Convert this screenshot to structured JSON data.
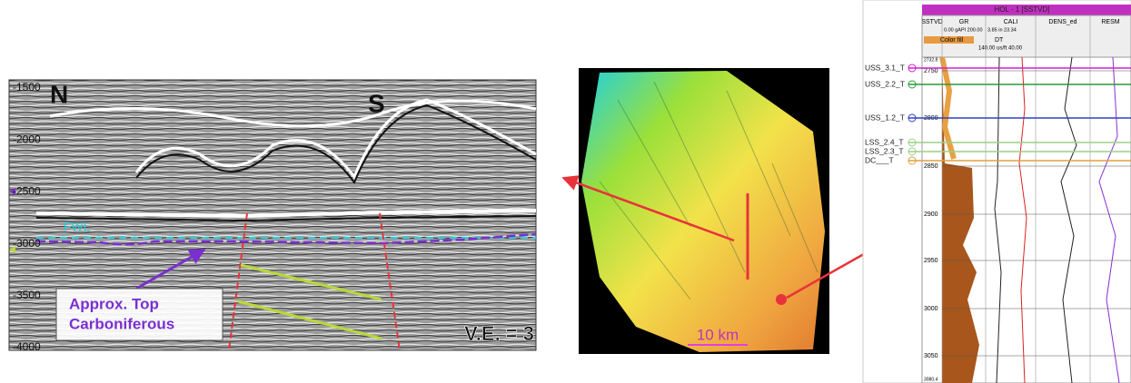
{
  "seismic": {
    "compass_left": "N",
    "compass_right": "S",
    "fluid_label": "FWL",
    "depth_labels": [
      -1500,
      -2000,
      -2500,
      -3000,
      -3500,
      -4000
    ],
    "annotation": [
      "Approx. Top",
      "Carboniferous"
    ],
    "exaggeration": "V.E. = 3"
  },
  "map": {
    "scale_bar": "10 km"
  },
  "well_log": {
    "title": "HOL - 1 [SSTVD]",
    "columns": [
      "SSTVD",
      "GR",
      "CALI",
      "DENS_ed",
      "RESM"
    ],
    "scales": [
      "0.00 gAPI 200.00",
      "3.85 in 23.34"
    ],
    "fill_label": "Color fill",
    "dt_label": "DT",
    "dt_scale": "140.00 us/ft 40.00",
    "depths": [
      "2732.8",
      "2750",
      "2800",
      "2850",
      "2900",
      "2950",
      "3000",
      "3050",
      "3080.4"
    ],
    "markers": [
      "USS_3.1_T",
      "USS_2.2_T",
      "USS_1.2_T",
      "LSS_2.4_T",
      "LSS_2.3_T",
      "DC___T"
    ]
  }
}
